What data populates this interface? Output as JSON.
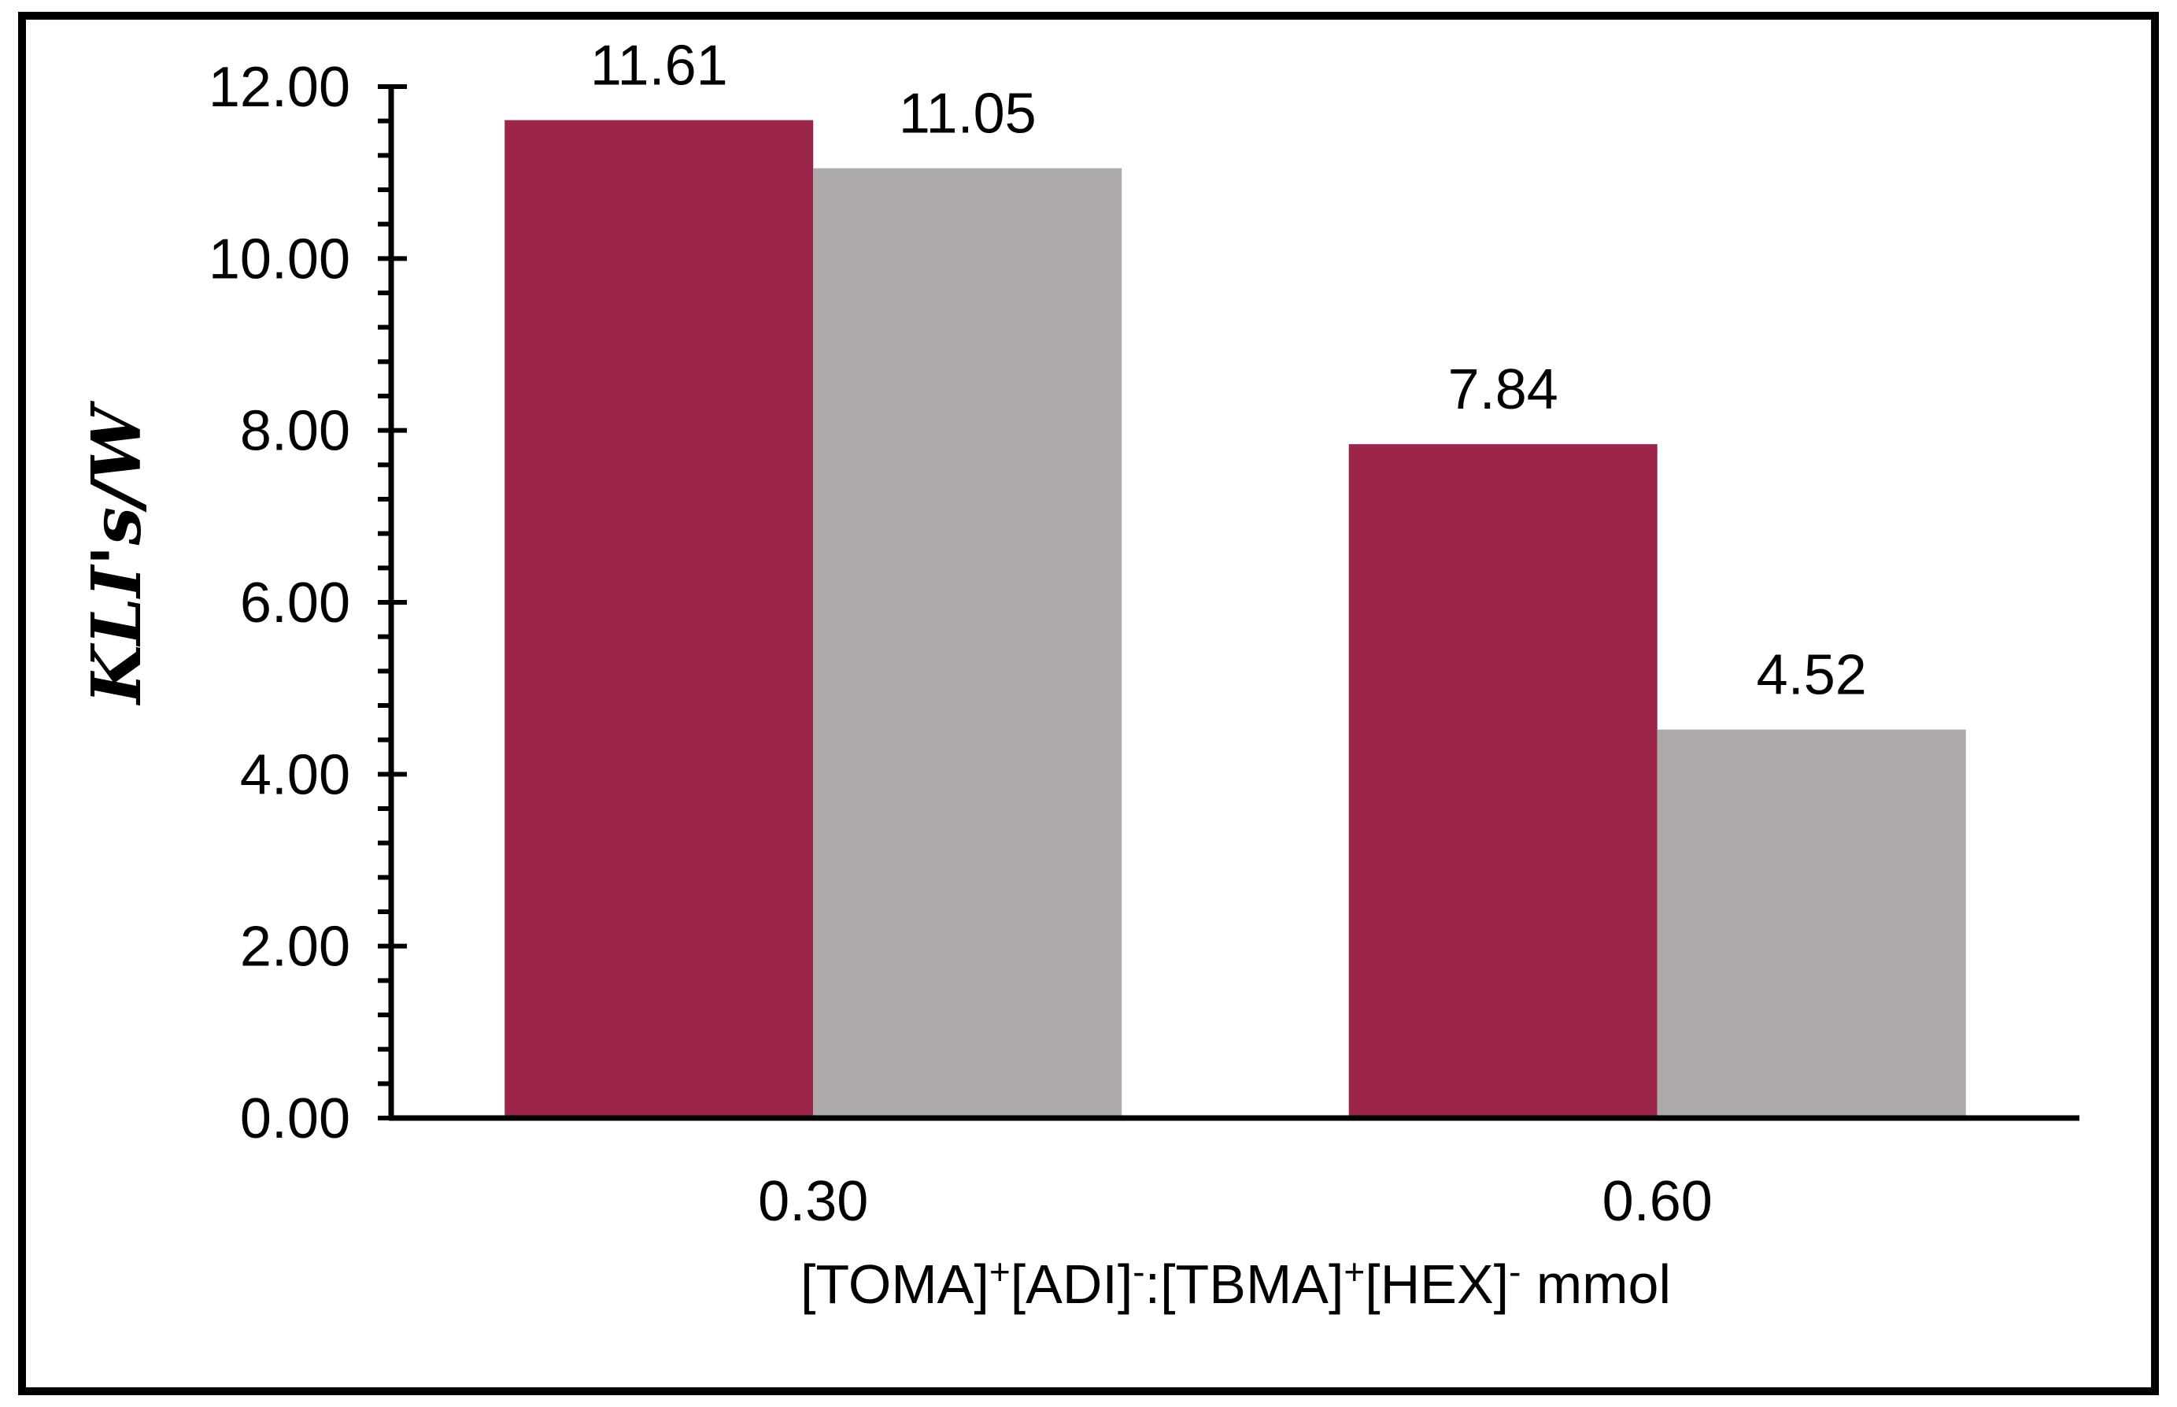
{
  "frame": {
    "background_color": "#FFFFFF",
    "border_color": "#000000"
  },
  "chart_data": {
    "type": "bar",
    "title": "",
    "categories": [
      "0.30",
      "0.60"
    ],
    "series": [
      {
        "color": "#9B264A",
        "values": [
          11.61,
          7.84
        ],
        "labels": [
          "11.61",
          "7.84"
        ]
      },
      {
        "color": "#AEAAA9",
        "values": [
          11.05,
          4.52
        ],
        "labels": [
          "11.05",
          "4.52"
        ]
      }
    ],
    "ylabel": "KLI's/W",
    "xlabel": "[TOMA]+[ADI]-:[TBMA]+[HEX]- mmol",
    "xlabel_parts": [
      {
        "text": "[TOMA]"
      },
      {
        "text": "+",
        "sup": true
      },
      {
        "text": "[ADI]"
      },
      {
        "text": "-",
        "sup": true
      },
      {
        "text": ":[TBMA]"
      },
      {
        "text": "+",
        "sup": true
      },
      {
        "text": "[HEX]"
      },
      {
        "text": "-",
        "sup": true
      },
      {
        "text": " mmol"
      }
    ],
    "ylim": [
      0,
      12
    ],
    "y_major_unit": 2,
    "y_minor_unit": 0.4,
    "y_major_ticks": [
      "0.00",
      "2.00",
      "4.00",
      "6.00",
      "8.00",
      "10.00",
      "12.00"
    ],
    "grid": false,
    "legend": "none"
  }
}
